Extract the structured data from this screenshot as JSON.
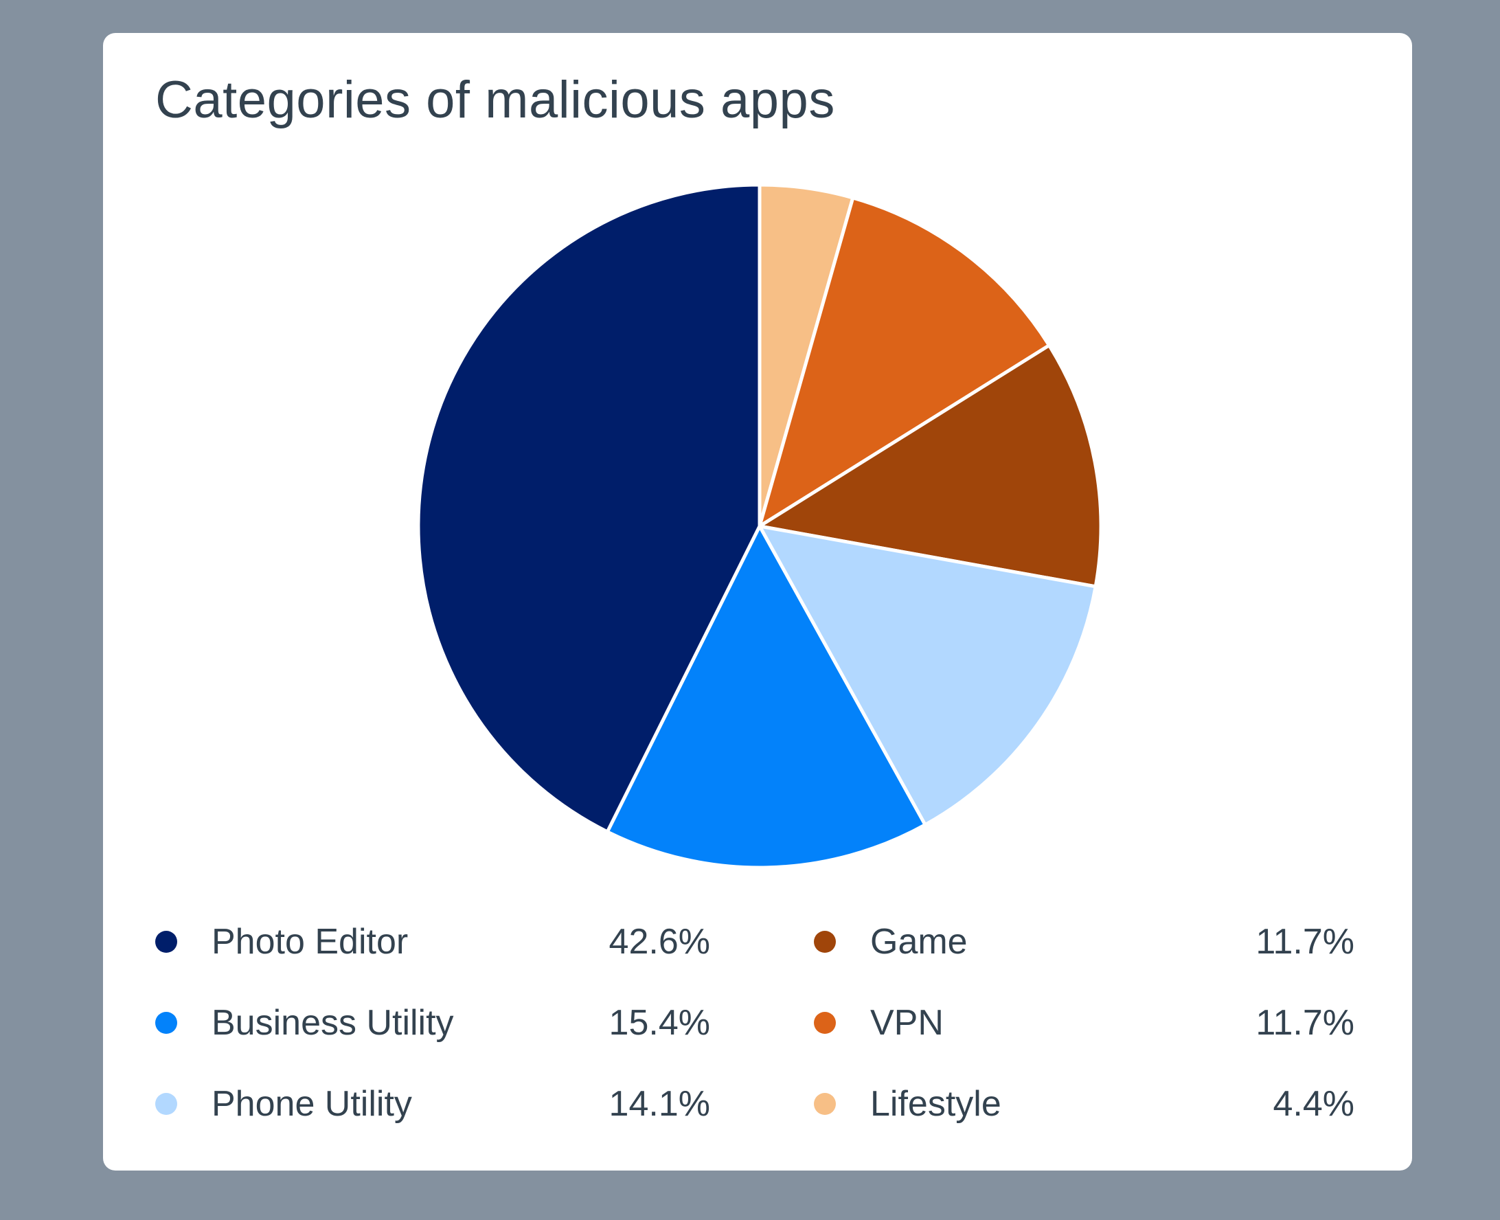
{
  "title": "Categories of malicious apps",
  "colors": {
    "background": "#84919f",
    "card": "#ffffff",
    "text": "#33424f"
  },
  "chart_data": {
    "type": "pie",
    "title": "Categories of malicious apps",
    "start_angle_deg": 0,
    "direction": "clockwise",
    "legend_position": "bottom",
    "slices": [
      {
        "label": "Lifestyle",
        "value": 4.4,
        "display": "4.4%",
        "color": "#f7bf86"
      },
      {
        "label": "VPN",
        "value": 11.7,
        "display": "11.7%",
        "color": "#dc6318"
      },
      {
        "label": "Game",
        "value": 11.7,
        "display": "11.7%",
        "color": "#a0450a"
      },
      {
        "label": "Phone Utility",
        "value": 14.1,
        "display": "14.1%",
        "color": "#b2d8ff"
      },
      {
        "label": "Business Utility",
        "value": 15.4,
        "display": "15.4%",
        "color": "#0382fa"
      },
      {
        "label": "Photo Editor",
        "value": 42.6,
        "display": "42.6%",
        "color": "#001e6a"
      }
    ],
    "legend": [
      {
        "label": "Photo Editor",
        "display": "42.6%",
        "color": "#001e6a"
      },
      {
        "label": "Business Utility",
        "display": "15.4%",
        "color": "#0382fa"
      },
      {
        "label": "Phone Utility",
        "display": "14.1%",
        "color": "#b2d8ff"
      },
      {
        "label": "Game",
        "display": "11.7%",
        "color": "#a0450a"
      },
      {
        "label": "VPN",
        "display": "11.7%",
        "color": "#dc6318"
      },
      {
        "label": "Lifestyle",
        "display": "4.4%",
        "color": "#f7bf86"
      }
    ]
  }
}
